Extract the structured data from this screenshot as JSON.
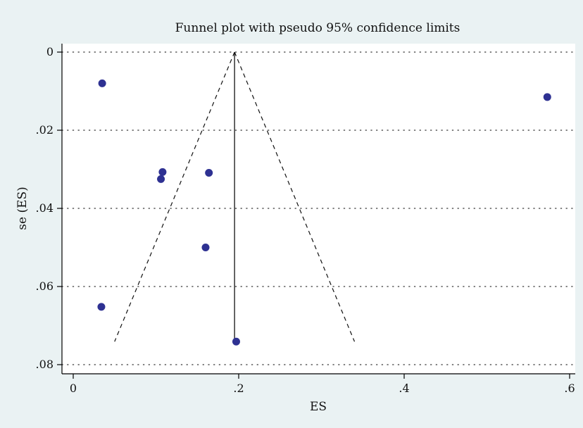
{
  "chart_data": {
    "type": "scatter",
    "title": "Funnel plot with pseudo 95% confidence limits",
    "xlabel": "ES",
    "ylabel": "se (ES)",
    "xlim": [
      -0.01,
      0.61
    ],
    "ylim": [
      0,
      0.08
    ],
    "y_reversed": true,
    "grid": "horizontal-dotted",
    "x_ticks": [
      {
        "value": 0,
        "label": "0"
      },
      {
        "value": 0.2,
        "label": ".2"
      },
      {
        "value": 0.4,
        "label": ".4"
      },
      {
        "value": 0.6,
        "label": ".6"
      }
    ],
    "y_ticks": [
      {
        "value": 0,
        "label": "0"
      },
      {
        "value": 0.02,
        "label": ".02"
      },
      {
        "value": 0.04,
        "label": ".04"
      },
      {
        "value": 0.06,
        "label": ".06"
      },
      {
        "value": 0.08,
        "label": ".08"
      }
    ],
    "points": [
      {
        "x": 0.035,
        "y": 0.008
      },
      {
        "x": 0.573,
        "y": 0.0115
      },
      {
        "x": 0.108,
        "y": 0.0307
      },
      {
        "x": 0.164,
        "y": 0.0309
      },
      {
        "x": 0.106,
        "y": 0.0325
      },
      {
        "x": 0.16,
        "y": 0.05
      },
      {
        "x": 0.034,
        "y": 0.0652
      },
      {
        "x": 0.197,
        "y": 0.0741
      }
    ],
    "pooled_estimate": {
      "x": 0.195,
      "se_max": 0.0741
    },
    "confidence_limits": {
      "apex": [
        0.195,
        0
      ],
      "lower": [
        0.05,
        0.0741
      ],
      "upper": [
        0.34,
        0.0741
      ]
    },
    "colors": {
      "background": "#eaf2f3",
      "plot_background": "#ffffff",
      "marker": "#2e3192",
      "line": "#111111"
    }
  }
}
